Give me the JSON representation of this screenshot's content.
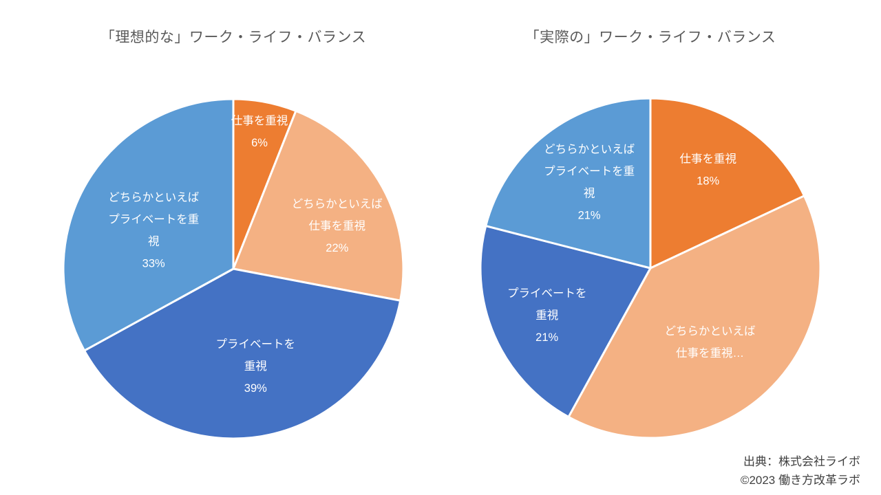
{
  "chart_data": [
    {
      "type": "pie",
      "title": "「理想的な」ワーク・ライフ・バランス",
      "labels": [
        "仕事を重視",
        "どちらかといえば仕事を重視",
        "プライベートを重視",
        "どちらかといえばプライベートを重視"
      ],
      "values": [
        6,
        22,
        39,
        33
      ],
      "colors": [
        "#ED7D31",
        "#F4B183",
        "#4472C4",
        "#5B9BD5"
      ],
      "label_lines": [
        [
          "仕事を重視",
          "6%"
        ],
        [
          "どちらかといえば",
          "仕事を重視",
          "22%"
        ],
        [
          "プライベートを",
          "重視",
          "39%"
        ],
        [
          "どちらかといえば",
          "プライベートを重",
          "視",
          "33%"
        ]
      ],
      "start_angle": 0,
      "direction": "clockwise",
      "legend": "none",
      "label_color": "#ffffff",
      "border_color": "#ffffff"
    },
    {
      "type": "pie",
      "title": "「実際の」ワーク・ライフ・バランス",
      "labels": [
        "仕事を重視",
        "どちらかといえば仕事を重視",
        "プライベートを重視",
        "どちらかといえばプライベートを重視"
      ],
      "values": [
        18,
        40,
        21,
        21
      ],
      "colors": [
        "#ED7D31",
        "#F4B183",
        "#4472C4",
        "#5B9BD5"
      ],
      "label_lines": [
        [
          "仕事を重視",
          "18%"
        ],
        [
          "どちらかといえば",
          "仕事を重視…"
        ],
        [
          "プライベートを",
          "重視",
          "21%"
        ],
        [
          "どちらかといえば",
          "プライベートを重",
          "視",
          "21%"
        ]
      ],
      "start_angle": 0,
      "direction": "clockwise",
      "legend": "none",
      "label_color": "#ffffff",
      "border_color": "#ffffff"
    }
  ],
  "source": {
    "line1": "出典：株式会社ライボ",
    "line2": "©2023 働き方改革ラボ"
  },
  "theme": {
    "title_color": "#595959",
    "source_color": "#404040",
    "background": "#ffffff"
  }
}
